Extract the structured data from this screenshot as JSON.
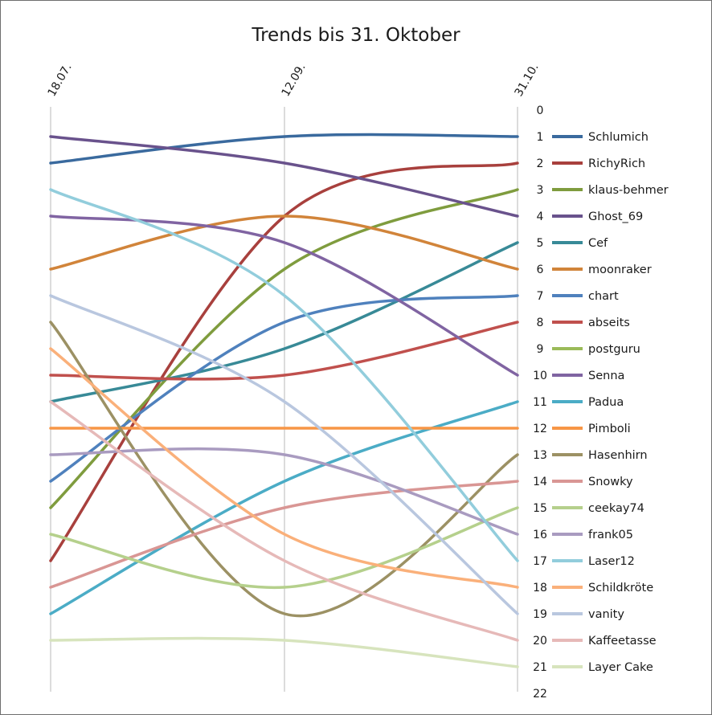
{
  "chart_data": {
    "type": "line",
    "title": "Trends bis 31. Oktober",
    "x": [
      "18.07.",
      "12.09.",
      "31.10."
    ],
    "y_ticks": [
      "0",
      "1",
      "2",
      "3",
      "4",
      "5",
      "6",
      "7",
      "8",
      "9",
      "10",
      "11",
      "12",
      "13",
      "14",
      "15",
      "16",
      "17",
      "18",
      "19",
      "20",
      "21",
      "22"
    ],
    "ylim": [
      0,
      22
    ],
    "y_inverted": true,
    "grid": "vertical",
    "legend_position": "right",
    "series": [
      {
        "name": "Schlumich",
        "color": "#3a6a9e",
        "values": [
          2,
          1,
          1
        ]
      },
      {
        "name": "RichyRich",
        "color": "#a8403d",
        "values": [
          17,
          4,
          2
        ]
      },
      {
        "name": "klaus-behmer",
        "color": "#7f9c3e",
        "values": [
          15,
          6,
          3
        ]
      },
      {
        "name": "Ghost_69",
        "color": "#69528c",
        "values": [
          1,
          2,
          4
        ]
      },
      {
        "name": "Cef",
        "color": "#388a97",
        "values": [
          11,
          9,
          5
        ]
      },
      {
        "name": "moonraker",
        "color": "#d1843a",
        "values": [
          6,
          4,
          6
        ]
      },
      {
        "name": "chart",
        "color": "#4f81bd",
        "values": [
          14,
          8,
          7
        ]
      },
      {
        "name": "abseits",
        "color": "#c0504d",
        "values": [
          10,
          10,
          8
        ]
      },
      {
        "name": "postguru",
        "color": "#9bbb59",
        "values": [
          null,
          null,
          9
        ]
      },
      {
        "name": "Senna",
        "color": "#8064a2",
        "values": [
          4,
          5,
          10
        ]
      },
      {
        "name": "Padua",
        "color": "#4bacc6",
        "values": [
          19,
          14,
          11
        ]
      },
      {
        "name": "Pimboli",
        "color": "#f79646",
        "values": [
          12,
          12,
          12
        ]
      },
      {
        "name": "Hasenhirn",
        "color": "#9c9164",
        "values": [
          8,
          19,
          13
        ]
      },
      {
        "name": "Snowky",
        "color": "#d99694",
        "values": [
          18,
          15,
          14
        ]
      },
      {
        "name": "ceekay74",
        "color": "#b5d08c",
        "values": [
          16,
          18,
          15
        ]
      },
      {
        "name": "frank05",
        "color": "#a99bc0",
        "values": [
          13,
          13,
          16
        ]
      },
      {
        "name": "Laser12",
        "color": "#92cddc",
        "values": [
          3,
          7,
          17
        ]
      },
      {
        "name": "Schildkröte",
        "color": "#fab07a",
        "values": [
          9,
          16,
          18
        ]
      },
      {
        "name": "vanity",
        "color": "#b9c7df",
        "values": [
          7,
          11,
          19
        ]
      },
      {
        "name": "Kaffeetasse",
        "color": "#e6b9b8",
        "values": [
          11,
          17,
          20
        ]
      },
      {
        "name": "Layer Cake",
        "color": "#d7e4bd",
        "values": [
          20,
          20,
          21
        ]
      }
    ]
  }
}
